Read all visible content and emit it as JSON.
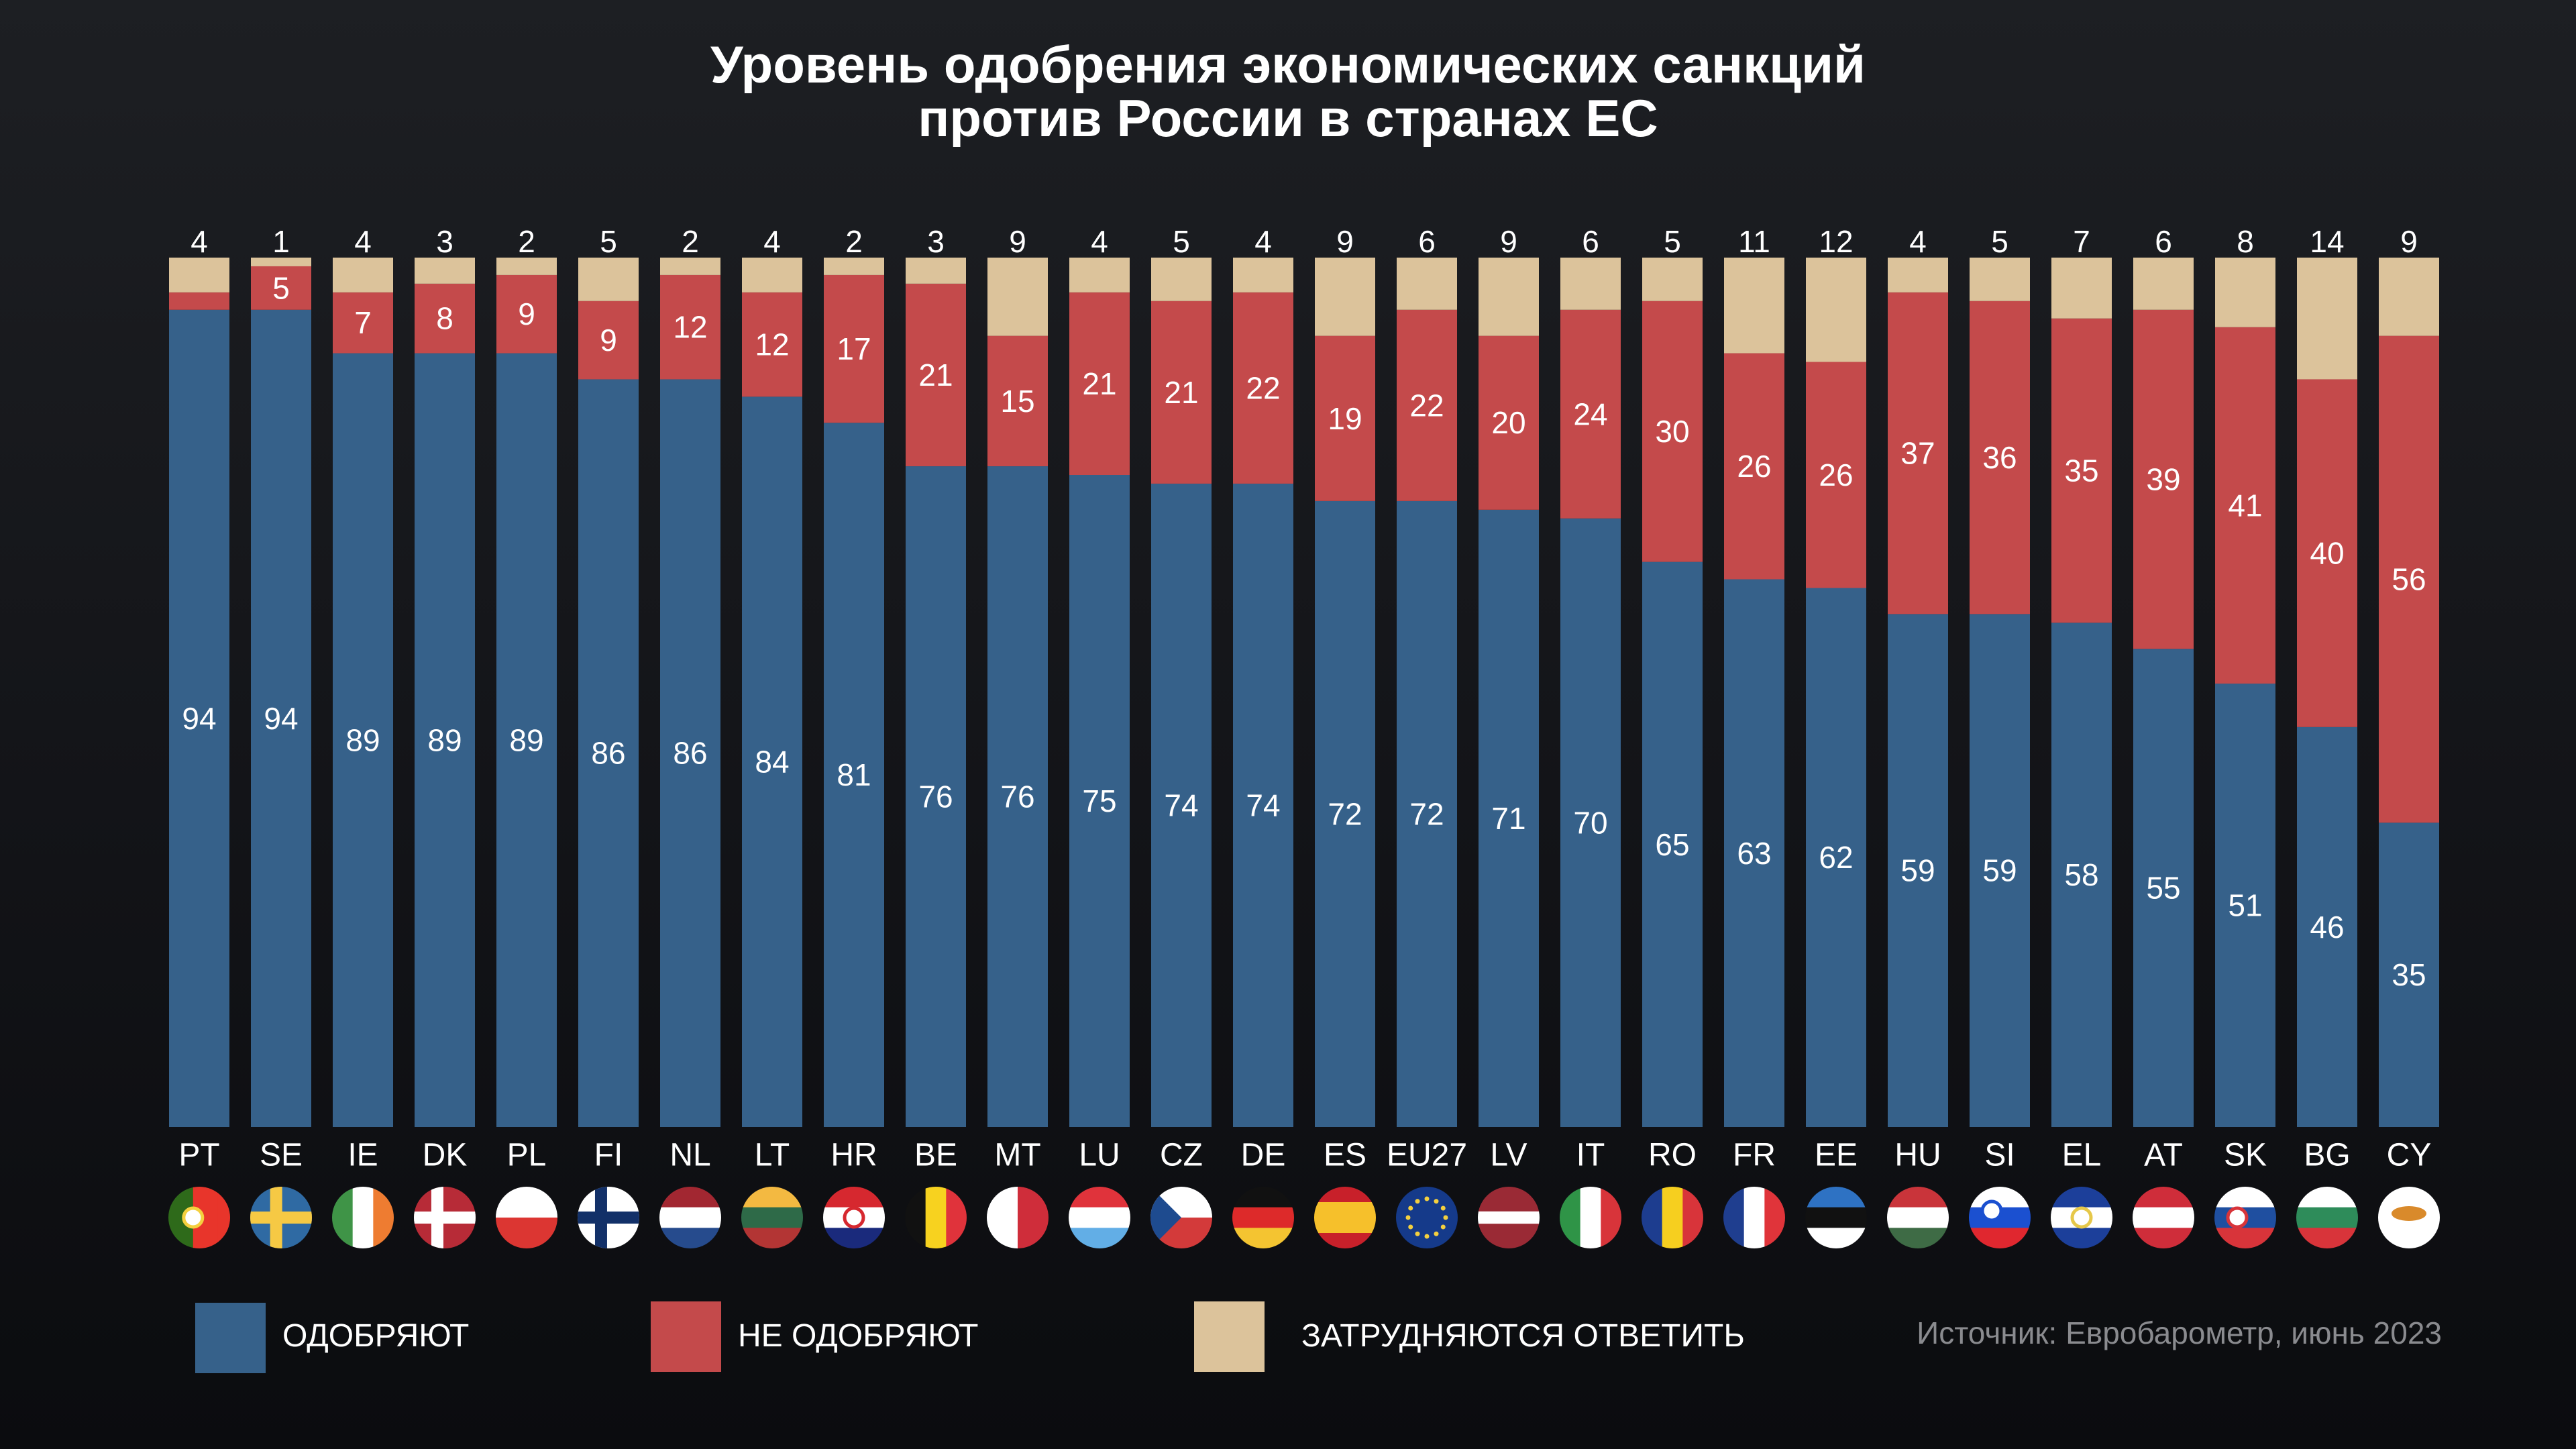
{
  "title": {
    "line1": "Уровень одобрения экономических санкций",
    "line2": "против России в странах ЕС"
  },
  "chart_data": {
    "type": "bar",
    "stacked": true,
    "orientation": "vertical",
    "unit": "%",
    "ylim": [
      0,
      100
    ],
    "grid": false,
    "legend_placement": "bottom",
    "categories": [
      "PT",
      "SE",
      "IE",
      "DK",
      "PL",
      "FI",
      "NL",
      "LT",
      "HR",
      "BE",
      "MT",
      "LU",
      "CZ",
      "DE",
      "ES",
      "EU27",
      "LV",
      "IT",
      "RO",
      "FR",
      "EE",
      "HU",
      "SI",
      "EL",
      "AT",
      "SK",
      "BG",
      "CY"
    ],
    "series": [
      {
        "name": "ОДОБРЯЮТ",
        "color": "#36618a",
        "values": [
          94,
          94,
          89,
          89,
          89,
          86,
          86,
          84,
          81,
          76,
          76,
          75,
          74,
          74,
          72,
          72,
          71,
          70,
          65,
          63,
          62,
          59,
          59,
          58,
          55,
          51,
          46,
          35
        ]
      },
      {
        "name": "НЕ ОДОБРЯЮТ",
        "color": "#c44a4b",
        "values": [
          2,
          5,
          7,
          8,
          9,
          9,
          12,
          12,
          17,
          21,
          15,
          21,
          21,
          22,
          19,
          22,
          20,
          24,
          30,
          26,
          26,
          37,
          36,
          35,
          39,
          41,
          40,
          56
        ]
      },
      {
        "name": "ЗАТРУДНЯЮТСЯ ОТВЕТИТЬ",
        "color": "#dcc39b",
        "values": [
          4,
          1,
          4,
          3,
          2,
          5,
          2,
          4,
          2,
          3,
          9,
          4,
          5,
          4,
          9,
          6,
          9,
          6,
          5,
          11,
          12,
          4,
          5,
          7,
          6,
          8,
          14,
          9
        ]
      }
    ],
    "unlabeled_segments": [
      {
        "category": "PT",
        "series": "НЕ ОДОБРЯЮТ"
      }
    ]
  },
  "legend": {
    "approve": "ОДОБРЯЮТ",
    "disapprove": "НЕ ОДОБРЯЮТ",
    "undecided": "ЗАТРУДНЯЮТСЯ ОТВЕТИТЬ"
  },
  "source": "Источник: Евробарометр, июнь 2023"
}
